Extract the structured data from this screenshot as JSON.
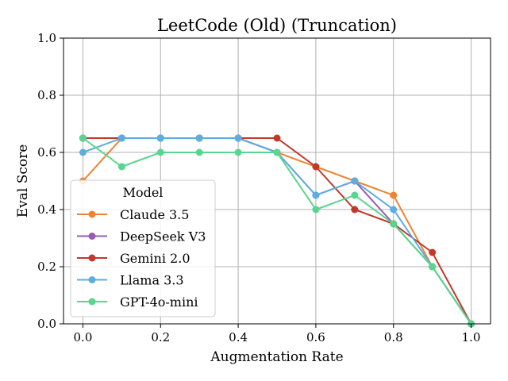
{
  "chart_data": {
    "type": "line",
    "title": "LeetCode (Old) (Truncation)",
    "xlabel": "Augmentation Rate",
    "ylabel": "Eval Score",
    "xlim": [
      -0.05,
      1.05
    ],
    "ylim": [
      0.0,
      1.0
    ],
    "grid": true,
    "legend_placement": "lower-left",
    "legend_title": "Model",
    "x": [
      0.0,
      0.1,
      0.2,
      0.3,
      0.4,
      0.5,
      0.6,
      0.7,
      0.8,
      0.9,
      1.0
    ],
    "xticks": [
      "0.0",
      "0.2",
      "0.4",
      "0.6",
      "0.8",
      "1.0"
    ],
    "yticks": [
      "0.0",
      "0.2",
      "0.4",
      "0.6",
      "0.8",
      "1.0"
    ],
    "series": [
      {
        "name": "Claude 3.5",
        "color": "#ee8433",
        "values": [
          0.5,
          0.65,
          0.65,
          0.65,
          0.65,
          0.6,
          0.55,
          0.5,
          0.45,
          0.2,
          0.0
        ]
      },
      {
        "name": "DeepSeek V3",
        "color": "#9b59b6",
        "values": [
          0.65,
          0.65,
          0.65,
          0.65,
          0.65,
          0.6,
          0.45,
          0.5,
          0.35,
          0.2,
          0.0
        ]
      },
      {
        "name": "Gemini 2.0",
        "color": "#c0392b",
        "values": [
          0.65,
          0.65,
          0.65,
          0.65,
          0.65,
          0.65,
          0.55,
          0.4,
          0.35,
          0.25,
          0.0
        ]
      },
      {
        "name": "Llama 3.3",
        "color": "#5dade2",
        "values": [
          0.6,
          0.65,
          0.65,
          0.65,
          0.65,
          0.6,
          0.45,
          0.5,
          0.4,
          0.2,
          0.0
        ]
      },
      {
        "name": "GPT-4o-mini",
        "color": "#58d68d",
        "values": [
          0.65,
          0.55,
          0.6,
          0.6,
          0.6,
          0.6,
          0.4,
          0.45,
          0.35,
          0.2,
          0.0
        ]
      }
    ]
  }
}
